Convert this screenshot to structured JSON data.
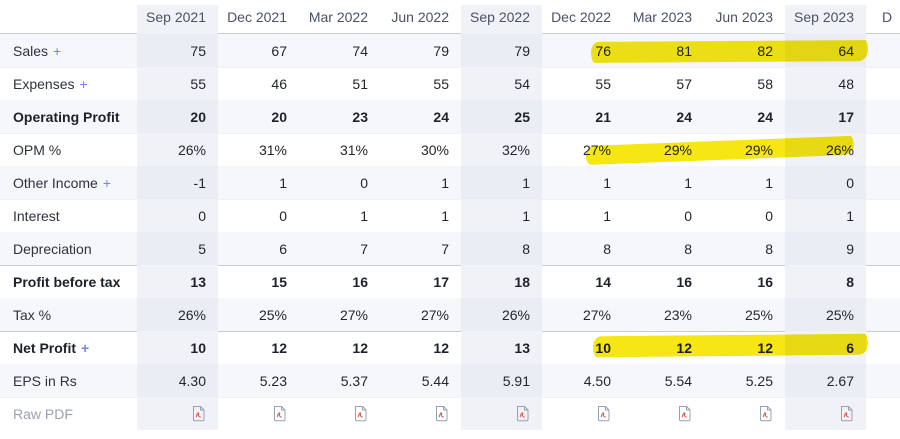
{
  "colors": {
    "highlighter_yellow": "#f5e400",
    "row_stripe": "#f6f7fa",
    "column_highlight": "#f1f2f8",
    "plus_accent": "#7a80f4",
    "pdf_icon_grey": "#98a1af",
    "pdf_icon_red": "#da5348",
    "separator_dark": "#c7cdd8"
  },
  "table": {
    "columns": [
      {
        "label": "Sep 2021",
        "highlighted": true
      },
      {
        "label": "Dec 2021",
        "highlighted": false
      },
      {
        "label": "Mar 2022",
        "highlighted": false
      },
      {
        "label": "Jun 2022",
        "highlighted": false
      },
      {
        "label": "Sep 2022",
        "highlighted": true
      },
      {
        "label": "Dec 2022",
        "highlighted": false
      },
      {
        "label": "Mar 2023",
        "highlighted": false
      },
      {
        "label": "Jun 2023",
        "highlighted": false
      },
      {
        "label": "Sep 2023",
        "highlighted": true
      },
      {
        "label": "D",
        "highlighted": false,
        "partial": true
      }
    ],
    "rows": [
      {
        "label": "Sales",
        "expandable": true,
        "bold": false,
        "striped": true,
        "separator_above": false,
        "values": [
          "75",
          "67",
          "74",
          "79",
          "79",
          "76",
          "81",
          "82",
          "64"
        ],
        "marked_cells": [
          5,
          6,
          7,
          8
        ]
      },
      {
        "label": "Expenses",
        "expandable": true,
        "bold": false,
        "striped": false,
        "separator_above": false,
        "values": [
          "55",
          "46",
          "51",
          "55",
          "54",
          "55",
          "57",
          "58",
          "48"
        ],
        "marked_cells": []
      },
      {
        "label": "Operating Profit",
        "expandable": false,
        "bold": true,
        "striped": true,
        "separator_above": true,
        "values": [
          "20",
          "20",
          "23",
          "24",
          "25",
          "21",
          "24",
          "24",
          "17"
        ],
        "marked_cells": []
      },
      {
        "label": "OPM %",
        "expandable": false,
        "bold": false,
        "striped": false,
        "separator_above": false,
        "values": [
          "26%",
          "31%",
          "31%",
          "30%",
          "32%",
          "27%",
          "29%",
          "29%",
          "26%"
        ],
        "marked_cells": [
          5,
          6,
          7,
          8
        ]
      },
      {
        "label": "Other Income",
        "expandable": true,
        "bold": false,
        "striped": true,
        "separator_above": false,
        "values": [
          "-1",
          "1",
          "0",
          "1",
          "1",
          "1",
          "1",
          "1",
          "0"
        ],
        "marked_cells": []
      },
      {
        "label": "Interest",
        "expandable": false,
        "bold": false,
        "striped": false,
        "separator_above": false,
        "values": [
          "0",
          "0",
          "1",
          "1",
          "1",
          "1",
          "0",
          "0",
          "1"
        ],
        "marked_cells": []
      },
      {
        "label": "Depreciation",
        "expandable": false,
        "bold": false,
        "striped": true,
        "separator_above": false,
        "values": [
          "5",
          "6",
          "7",
          "7",
          "8",
          "8",
          "8",
          "8",
          "9"
        ],
        "marked_cells": []
      },
      {
        "label": "Profit before tax",
        "expandable": false,
        "bold": true,
        "striped": false,
        "separator_above": true,
        "values": [
          "13",
          "15",
          "16",
          "17",
          "18",
          "14",
          "16",
          "16",
          "8"
        ],
        "marked_cells": []
      },
      {
        "label": "Tax %",
        "expandable": false,
        "bold": false,
        "striped": true,
        "separator_above": false,
        "values": [
          "26%",
          "25%",
          "27%",
          "27%",
          "26%",
          "27%",
          "23%",
          "25%",
          "25%"
        ],
        "marked_cells": []
      },
      {
        "label": "Net Profit",
        "expandable": true,
        "bold": true,
        "striped": false,
        "separator_above": true,
        "values": [
          "10",
          "12",
          "12",
          "12",
          "13",
          "10",
          "12",
          "12",
          "6"
        ],
        "marked_cells": [
          5,
          6,
          7,
          8
        ]
      },
      {
        "label": "EPS in Rs",
        "expandable": false,
        "bold": false,
        "striped": true,
        "separator_above": false,
        "values": [
          "4.30",
          "5.23",
          "5.37",
          "5.44",
          "5.91",
          "4.50",
          "5.54",
          "5.25",
          "2.67"
        ],
        "marked_cells": []
      },
      {
        "label": "Raw PDF",
        "expandable": false,
        "bold": false,
        "striped": false,
        "separator_above": false,
        "type": "pdf",
        "muted_label": true,
        "values": [
          "pdf",
          "pdf",
          "pdf",
          "pdf",
          "pdf",
          "pdf",
          "pdf",
          "pdf",
          "pdf"
        ],
        "marked_cells": []
      }
    ]
  },
  "expand_symbol": "+"
}
